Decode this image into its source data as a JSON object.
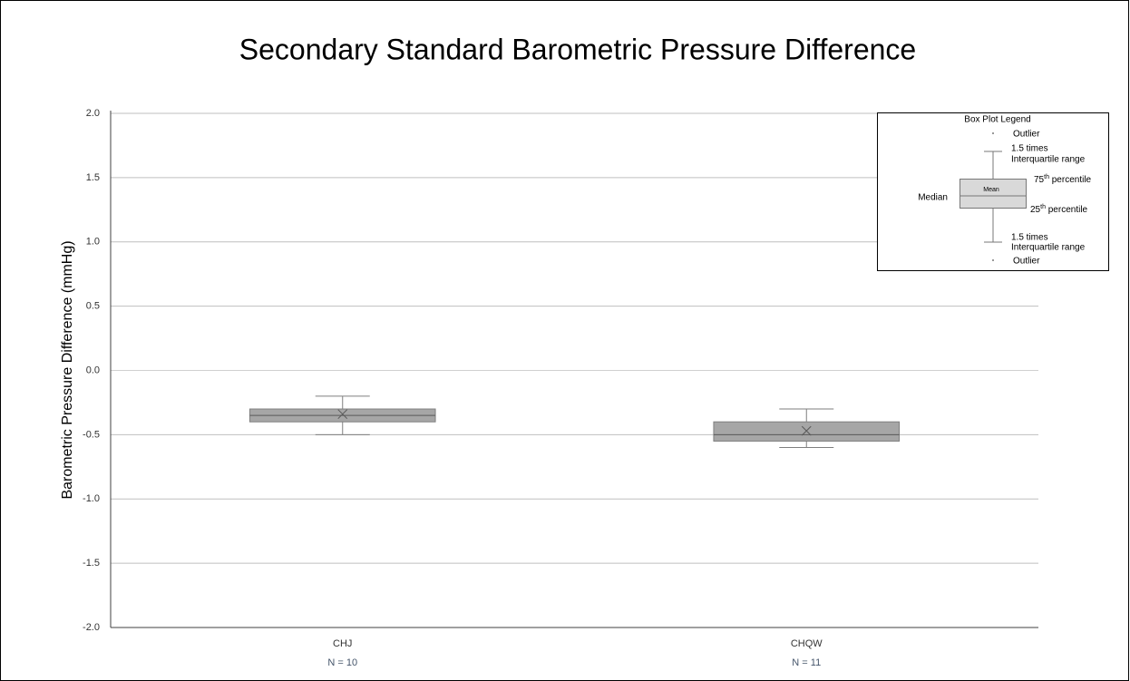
{
  "chart_data": {
    "type": "box",
    "title": "Secondary Standard Barometric Pressure Difference",
    "y_label": "Barometric Pressure Difference (mmHg)",
    "categories": [
      "CHJ",
      "CHQW"
    ],
    "sample_sizes": [
      "N = 10",
      "N = 11"
    ],
    "boxes": [
      {
        "min": -0.5,
        "q1": -0.4,
        "median": -0.35,
        "q3": -0.3,
        "max": -0.2,
        "mean": -0.34
      },
      {
        "min": -0.6,
        "q1": -0.55,
        "median": -0.5,
        "q3": -0.4,
        "max": -0.3,
        "mean": -0.47
      }
    ],
    "color": "#a6a6a6",
    "ylim": [
      -2,
      2
    ],
    "yticks": [
      {
        "value": -2,
        "label": "-2.0"
      },
      -1.5,
      {
        "value": -1,
        "label": "-1.0"
      },
      -0.5,
      {
        "value": 0,
        "label": "0.0"
      },
      0.5,
      {
        "value": 1,
        "label": "1.0"
      },
      1.5,
      {
        "value": 2,
        "label": "2.0"
      }
    ],
    "grid": true,
    "legend_key": {
      "title": "Box Plot Legend",
      "outlier_top": "Outlier",
      "upper_whisker": [
        "1.5 times",
        "Interquartile range"
      ],
      "q3": [
        "75",
        "th",
        " percentile"
      ],
      "mean": "Mean",
      "median": "Median",
      "q1": [
        "25",
        "th",
        " percentile"
      ],
      "lower_whisker": [
        "1.5 times",
        "Interquartile range"
      ],
      "outlier_bottom": "Outlier"
    }
  }
}
